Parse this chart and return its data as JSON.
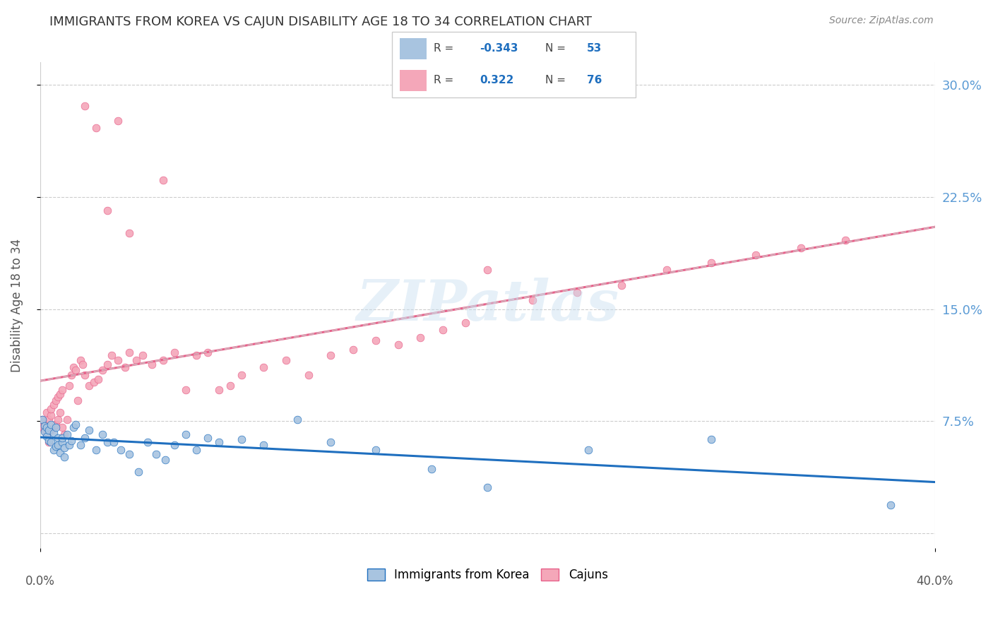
{
  "title": "IMMIGRANTS FROM KOREA VS CAJUN DISABILITY AGE 18 TO 34 CORRELATION CHART",
  "source": "Source: ZipAtlas.com",
  "ylabel": "Disability Age 18 to 34",
  "xlim": [
    0.0,
    0.4
  ],
  "ylim": [
    -0.01,
    0.315
  ],
  "korea_R": -0.343,
  "korea_N": 53,
  "cajun_R": 0.322,
  "cajun_N": 76,
  "korea_color": "#a8c4e0",
  "cajun_color": "#f4a7b9",
  "korea_line_color": "#1f6fbf",
  "cajun_line_color": "#e8608a",
  "legend_label_korea": "Immigrants from Korea",
  "legend_label_cajun": "Cajuns",
  "watermark": "ZIPatlas",
  "korea_x": [
    0.001,
    0.002,
    0.002,
    0.003,
    0.003,
    0.004,
    0.004,
    0.005,
    0.005,
    0.006,
    0.006,
    0.007,
    0.007,
    0.008,
    0.008,
    0.009,
    0.01,
    0.01,
    0.011,
    0.011,
    0.012,
    0.013,
    0.014,
    0.015,
    0.016,
    0.018,
    0.02,
    0.022,
    0.025,
    0.028,
    0.03,
    0.033,
    0.036,
    0.04,
    0.044,
    0.048,
    0.052,
    0.056,
    0.06,
    0.065,
    0.07,
    0.075,
    0.08,
    0.09,
    0.1,
    0.115,
    0.13,
    0.15,
    0.175,
    0.2,
    0.245,
    0.3,
    0.38
  ],
  "korea_y": [
    0.076,
    0.072,
    0.068,
    0.065,
    0.071,
    0.062,
    0.069,
    0.073,
    0.061,
    0.067,
    0.056,
    0.071,
    0.058,
    0.064,
    0.059,
    0.054,
    0.061,
    0.064,
    0.057,
    0.051,
    0.066,
    0.059,
    0.062,
    0.071,
    0.073,
    0.059,
    0.064,
    0.069,
    0.056,
    0.066,
    0.061,
    0.061,
    0.056,
    0.053,
    0.041,
    0.061,
    0.053,
    0.049,
    0.059,
    0.066,
    0.056,
    0.064,
    0.061,
    0.063,
    0.059,
    0.076,
    0.061,
    0.056,
    0.043,
    0.031,
    0.056,
    0.063,
    0.019
  ],
  "cajun_x": [
    0.001,
    0.001,
    0.002,
    0.002,
    0.003,
    0.003,
    0.004,
    0.004,
    0.005,
    0.005,
    0.005,
    0.006,
    0.006,
    0.007,
    0.007,
    0.008,
    0.008,
    0.009,
    0.009,
    0.01,
    0.01,
    0.011,
    0.012,
    0.013,
    0.014,
    0.015,
    0.016,
    0.017,
    0.018,
    0.019,
    0.02,
    0.022,
    0.024,
    0.026,
    0.028,
    0.03,
    0.032,
    0.035,
    0.038,
    0.04,
    0.043,
    0.046,
    0.05,
    0.055,
    0.06,
    0.065,
    0.07,
    0.075,
    0.08,
    0.085,
    0.09,
    0.1,
    0.11,
    0.12,
    0.13,
    0.14,
    0.15,
    0.16,
    0.17,
    0.18,
    0.19,
    0.2,
    0.22,
    0.24,
    0.26,
    0.28,
    0.3,
    0.32,
    0.34,
    0.36,
    0.02,
    0.035,
    0.055,
    0.025,
    0.03,
    0.04
  ],
  "cajun_y": [
    0.071,
    0.076,
    0.073,
    0.069,
    0.081,
    0.066,
    0.076,
    0.061,
    0.079,
    0.069,
    0.083,
    0.071,
    0.086,
    0.073,
    0.089,
    0.076,
    0.091,
    0.081,
    0.093,
    0.096,
    0.071,
    0.066,
    0.076,
    0.099,
    0.106,
    0.111,
    0.109,
    0.089,
    0.116,
    0.113,
    0.106,
    0.099,
    0.101,
    0.103,
    0.109,
    0.113,
    0.119,
    0.116,
    0.111,
    0.121,
    0.116,
    0.119,
    0.113,
    0.116,
    0.121,
    0.096,
    0.119,
    0.121,
    0.096,
    0.099,
    0.106,
    0.111,
    0.116,
    0.106,
    0.119,
    0.123,
    0.129,
    0.126,
    0.131,
    0.136,
    0.141,
    0.176,
    0.156,
    0.161,
    0.166,
    0.176,
    0.181,
    0.186,
    0.191,
    0.196,
    0.286,
    0.276,
    0.236,
    0.271,
    0.216,
    0.201
  ]
}
